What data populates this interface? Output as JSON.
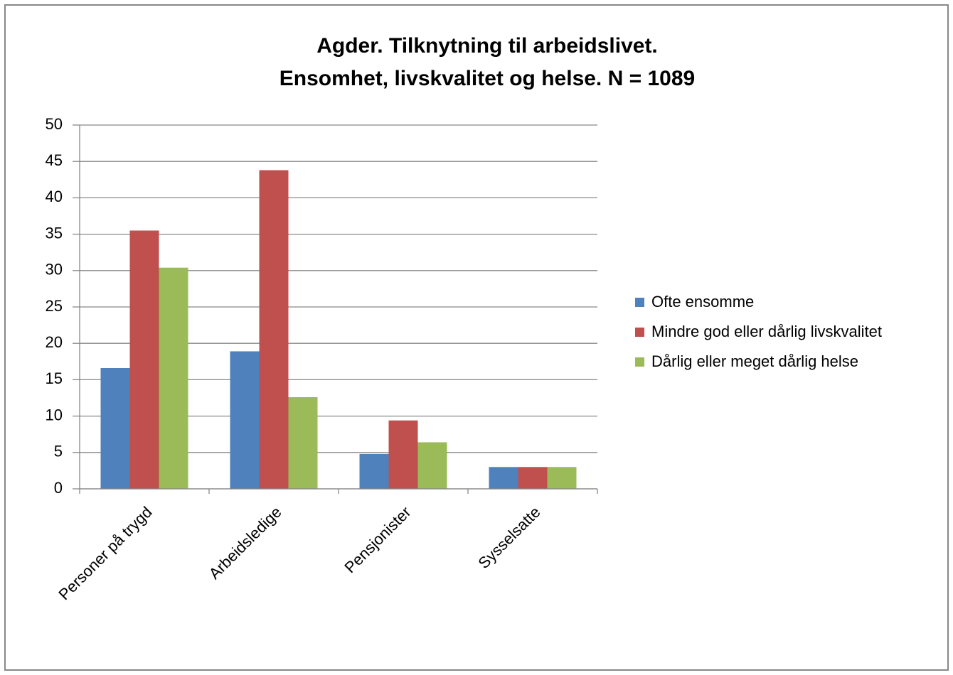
{
  "chart_data": {
    "type": "bar",
    "title": [
      "Agder. Tilknytning til arbeidslivet.",
      "Ensomhet, livskvalitet og helse. N = 1089"
    ],
    "categories": [
      "Personer på trygd",
      "Arbeidsledige",
      "Pensjonister",
      "Sysselsatte"
    ],
    "series": [
      {
        "name": "Ofte ensomme",
        "color": "#4f81bd",
        "values": [
          16.6,
          18.9,
          4.8,
          3.0
        ]
      },
      {
        "name": "Mindre god eller dårlig livskvalitet",
        "color": "#c0504d",
        "values": [
          35.5,
          43.8,
          9.4,
          3.0
        ]
      },
      {
        "name": "Dårlig eller meget dårlig helse",
        "color": "#9bbb59",
        "values": [
          30.4,
          12.6,
          6.4,
          3.0
        ]
      }
    ],
    "ylim": [
      0,
      50
    ],
    "yticks": [
      0,
      5,
      10,
      15,
      20,
      25,
      30,
      35,
      40,
      45,
      50
    ],
    "grid": true,
    "legend": "right"
  }
}
